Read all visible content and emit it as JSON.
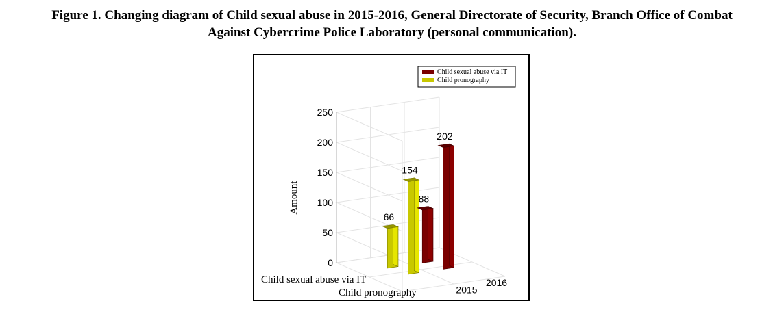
{
  "caption": {
    "line1": "Figure 1. Changing diagram of Child sexual abuse in 2015-2016, General Directorate of Security, Branch Office of Combat",
    "line2": "Against Cybercrime Police Laboratory (personal communication)."
  },
  "chart_data": {
    "type": "bar",
    "categories": [
      "2015",
      "2016"
    ],
    "series": [
      {
        "name": "Child pronography",
        "values": [
          66,
          154
        ]
      },
      {
        "name": "Child sexual abuse via IT",
        "values": [
          88,
          202
        ]
      }
    ],
    "legend": [
      "Child sexual abuse via IT",
      "Child pronography"
    ],
    "depth_labels": [
      "Child sexual abuse via IT",
      "Child pronography"
    ],
    "ylabel": "Amount",
    "yticks": [
      0,
      50,
      100,
      150,
      200,
      250
    ],
    "ylim": [
      0,
      250
    ],
    "legend_position": "top-right",
    "grid": true,
    "colors": {
      "Child pronography": "#c8c800",
      "Child sexual abuse via IT": "#7a0000"
    }
  }
}
